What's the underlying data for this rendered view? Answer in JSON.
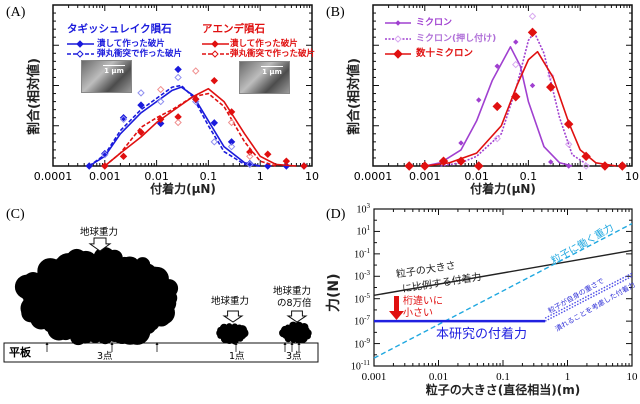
{
  "panels": {
    "a": "(A)",
    "b": "(B)",
    "c": "(C)",
    "d": "(D)"
  },
  "chart_data": [
    {
      "id": "A",
      "type": "scatter",
      "xscale": "log",
      "xlim": [
        0.0001,
        10
      ],
      "ylim": [
        0,
        1
      ],
      "xlabel": "付着力(μN)",
      "ylabel": "割合(相対値)",
      "xticks": [
        "0.0001",
        "0.001",
        "0.01",
        "0.1",
        "1",
        "10"
      ],
      "legend_groups": [
        {
          "title": "タギッシュレイク隕石",
          "color": "#1a1adc",
          "entries": [
            "潰して作った破片",
            "弾丸衝突で作った破片"
          ]
        },
        {
          "title": "アエンデ隕石",
          "color": "#e01010",
          "entries": [
            "潰して作った破片",
            "弾丸衝突で作った破片"
          ]
        }
      ],
      "inset_scale_label": "1 μm",
      "series": [
        {
          "name": "タギッシュレイク隕石 潰して作った破片",
          "color": "#1a1adc",
          "marker": "filled-diamond",
          "line": "solid",
          "points": [
            [
              0.0005,
              0
            ],
            [
              0.001,
              0.077
            ],
            [
              0.0023,
              0.3
            ],
            [
              0.005,
              0.378
            ],
            [
              0.012,
              0.264
            ],
            [
              0.026,
              0.6
            ],
            [
              0.057,
              0.415
            ],
            [
              0.13,
              0.268
            ],
            [
              0.28,
              0.15
            ],
            [
              0.63,
              0.015
            ],
            [
              1.4,
              0
            ],
            [
              3.2,
              0
            ],
            [
              7,
              0
            ]
          ],
          "fit": [
            [
              0.0005,
              0
            ],
            [
              0.001,
              0.06
            ],
            [
              0.002,
              0.2
            ],
            [
              0.005,
              0.33
            ],
            [
              0.01,
              0.4
            ],
            [
              0.02,
              0.47
            ],
            [
              0.03,
              0.49
            ],
            [
              0.05,
              0.44
            ],
            [
              0.1,
              0.28
            ],
            [
              0.2,
              0.12
            ],
            [
              0.5,
              0.02
            ],
            [
              1,
              0
            ]
          ]
        },
        {
          "name": "タギッシュレイク隕石 弾丸衝突で作った破片",
          "color": "#8f8ff0",
          "linecolor": "#1a1adc",
          "marker": "open-diamond",
          "line": "dashed",
          "points": [
            [
              0.001,
              0.07
            ],
            [
              0.0023,
              0.29
            ],
            [
              0.005,
              0.454
            ],
            [
              0.012,
              0.4
            ],
            [
              0.026,
              0.55
            ],
            [
              0.057,
              0.4
            ],
            [
              0.13,
              0.15
            ],
            [
              0.28,
              0.12
            ],
            [
              0.63,
              0.01
            ]
          ],
          "fit": [
            [
              0.0005,
              0
            ],
            [
              0.001,
              0.07
            ],
            [
              0.002,
              0.22
            ],
            [
              0.005,
              0.35
            ],
            [
              0.01,
              0.42
            ],
            [
              0.02,
              0.49
            ],
            [
              0.03,
              0.5
            ],
            [
              0.05,
              0.43
            ],
            [
              0.1,
              0.25
            ],
            [
              0.2,
              0.09
            ],
            [
              0.5,
              0.01
            ],
            [
              1,
              0
            ]
          ]
        },
        {
          "name": "アエンデ隕石 潰して作った破片",
          "color": "#e01010",
          "marker": "filled-diamond",
          "line": "solid",
          "points": [
            [
              0.001,
              0
            ],
            [
              0.0023,
              0.06
            ],
            [
              0.005,
              0.21
            ],
            [
              0.012,
              0.29
            ],
            [
              0.026,
              0.305
            ],
            [
              0.057,
              0.415
            ],
            [
              0.13,
              0.53
            ],
            [
              0.28,
              0.336
            ],
            [
              0.63,
              0.087
            ],
            [
              1.4,
              0.073
            ],
            [
              3.2,
              0.03
            ],
            [
              7,
              0
            ]
          ],
          "fit": [
            [
              0.001,
              0
            ],
            [
              0.002,
              0.08
            ],
            [
              0.005,
              0.18
            ],
            [
              0.01,
              0.27
            ],
            [
              0.02,
              0.34
            ],
            [
              0.05,
              0.43
            ],
            [
              0.1,
              0.48
            ],
            [
              0.2,
              0.4
            ],
            [
              0.5,
              0.2
            ],
            [
              1,
              0.06
            ],
            [
              2,
              0.01
            ],
            [
              5,
              0
            ]
          ]
        },
        {
          "name": "アエンデ隕石 弾丸衝突で作った破片",
          "color": "#f09090",
          "linecolor": "#e01010",
          "marker": "open-diamond",
          "line": "dashed",
          "points": [
            [
              0.012,
              0.475
            ],
            [
              0.026,
              0.27
            ],
            [
              0.057,
              0.59
            ],
            [
              0.28,
              0.27
            ],
            [
              0.63,
              0.06
            ]
          ],
          "fit": [
            [
              0.001,
              0
            ],
            [
              0.002,
              0.08
            ],
            [
              0.005,
              0.24
            ],
            [
              0.01,
              0.3
            ],
            [
              0.02,
              0.35
            ],
            [
              0.05,
              0.43
            ],
            [
              0.1,
              0.45
            ],
            [
              0.2,
              0.37
            ],
            [
              0.5,
              0.15
            ],
            [
              1,
              0.03
            ],
            [
              2,
              0
            ]
          ]
        }
      ]
    },
    {
      "id": "B",
      "type": "scatter",
      "xscale": "log",
      "xlim": [
        0.0001,
        10
      ],
      "ylim": [
        0,
        1
      ],
      "xlabel": "付着力(μN)",
      "ylabel": "割合(相対値)",
      "xticks": [
        "0.0001",
        "0.001",
        "0.01",
        "0.1",
        "1",
        "10"
      ],
      "series": [
        {
          "name": "ミクロン",
          "color": "#a040d0",
          "marker": "small-filled",
          "line": "solid",
          "points": [
            [
              0.0023,
              0.02
            ],
            [
              0.005,
              0.143
            ],
            [
              0.011,
              0.41
            ],
            [
              0.025,
              0.62
            ],
            [
              0.057,
              0.77
            ],
            [
              0.12,
              0.5
            ],
            [
              0.27,
              0.025
            ],
            [
              0.6,
              0
            ]
          ],
          "fit": [
            [
              0.001,
              0
            ],
            [
              0.002,
              0.02
            ],
            [
              0.005,
              0.1
            ],
            [
              0.01,
              0.28
            ],
            [
              0.02,
              0.53
            ],
            [
              0.045,
              0.74
            ],
            [
              0.07,
              0.62
            ],
            [
              0.1,
              0.4
            ],
            [
              0.2,
              0.12
            ],
            [
              0.4,
              0.02
            ],
            [
              0.7,
              0
            ]
          ]
        },
        {
          "name": "ミクロン(押し付け)",
          "color": "#d8a8f0",
          "linecolor": "#a040d0",
          "marker": "open-diamond",
          "line": "dotted",
          "points": [
            [
              0.025,
              0.17
            ],
            [
              0.057,
              0.63
            ],
            [
              0.12,
              0.93
            ],
            [
              0.27,
              0.56
            ],
            [
              0.6,
              0.135
            ],
            [
              1.3,
              0
            ]
          ],
          "fit": [
            [
              0.002,
              0
            ],
            [
              0.005,
              0.02
            ],
            [
              0.01,
              0.06
            ],
            [
              0.03,
              0.2
            ],
            [
              0.06,
              0.5
            ],
            [
              0.1,
              0.78
            ],
            [
              0.13,
              0.83
            ],
            [
              0.2,
              0.7
            ],
            [
              0.4,
              0.3
            ],
            [
              0.7,
              0.07
            ],
            [
              1.5,
              0
            ]
          ]
        },
        {
          "name": "数十ミクロン",
          "color": "#e01010",
          "marker": "large-filled-diamond",
          "line": "solid",
          "points": [
            [
              0.0005,
              0
            ],
            [
              0.001,
              0
            ],
            [
              0.0023,
              0.03
            ],
            [
              0.005,
              0.03
            ],
            [
              0.011,
              0
            ],
            [
              0.025,
              0.37
            ],
            [
              0.057,
              0.43
            ],
            [
              0.12,
              0.83
            ],
            [
              0.27,
              0.49
            ],
            [
              0.6,
              0.26
            ],
            [
              1.3,
              0.06
            ],
            [
              3,
              0
            ],
            [
              6.5,
              0
            ]
          ],
          "fit": [
            [
              0.001,
              0
            ],
            [
              0.003,
              0.02
            ],
            [
              0.01,
              0.08
            ],
            [
              0.03,
              0.25
            ],
            [
              0.06,
              0.5
            ],
            [
              0.1,
              0.66
            ],
            [
              0.15,
              0.71
            ],
            [
              0.3,
              0.55
            ],
            [
              0.6,
              0.27
            ],
            [
              1,
              0.1
            ],
            [
              2,
              0.02
            ],
            [
              5,
              0
            ]
          ]
        }
      ]
    },
    {
      "id": "D",
      "type": "line",
      "xscale": "log",
      "yscale": "log",
      "xlim": [
        0.001,
        10
      ],
      "ylim": [
        1e-11,
        1000
      ],
      "xlabel": "粒子の大きさ(直径相当)(m)",
      "ylabel": "力(N)",
      "xticks": [
        "0.001",
        "0.01",
        "0.1",
        "1",
        "10"
      ],
      "yticks": [
        {
          "b": "10",
          "e": "3"
        },
        {
          "b": "10",
          "e": "1"
        },
        {
          "b": "10",
          "e": "-1"
        },
        {
          "b": "10",
          "e": "-3"
        },
        {
          "b": "10",
          "e": "-5"
        },
        {
          "b": "10",
          "e": "-7"
        },
        {
          "b": "10",
          "e": "-9"
        },
        {
          "b": "10",
          "e": "-11"
        }
      ],
      "series": [
        {
          "name": "粒子の大きさに比例する付着力",
          "color": "#222222",
          "line": "solid",
          "points": [
            [
              0.001,
              2e-05
            ],
            [
              10,
              0.2
            ]
          ]
        },
        {
          "name": "粒子に働く重力",
          "color": "#20a8e0",
          "line": "dashed",
          "points": [
            [
              0.001,
              5e-11
            ],
            [
              10,
              50
            ]
          ]
        },
        {
          "name": "本研究の付着力",
          "color": "#2020e0",
          "line": "solid",
          "points": [
            [
              0.001,
              1e-07
            ],
            [
              0.45,
              1e-07
            ]
          ]
        },
        {
          "name": "粒子が自身の重さで潰れることを考慮した付着力",
          "color": "#5050e8",
          "line": "dotted",
          "points": [
            [
              0.45,
              1e-07
            ],
            [
              10,
              0.001
            ]
          ]
        }
      ],
      "annotations": {
        "black_line": [
          "粒子の大きさ",
          "に比例する付着力"
        ],
        "gravity": "粒子に働く重力",
        "study": "本研究の付着力",
        "crush": [
          "粒子が自身の重さで",
          "潰れることを考慮した付着力"
        ],
        "arrow_text": [
          "桁違いに",
          "小さい"
        ],
        "arrow_color": "#e01010"
      }
    }
  ],
  "diagram_c": {
    "gravity_big": "地球重力",
    "gravity_small": "地球重力",
    "gravity_80k": [
      "地球重力",
      "の8万倍"
    ],
    "plate": "平板",
    "contacts_big": "3点",
    "contacts_small": "1点",
    "contacts_80k": "3点"
  }
}
